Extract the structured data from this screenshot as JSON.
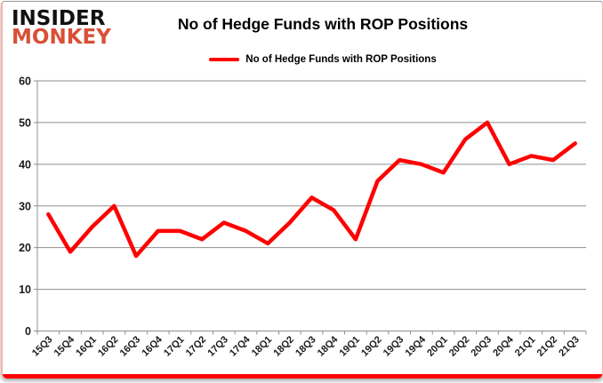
{
  "brand": {
    "line1": "INSIDER",
    "line2": "MONKEY"
  },
  "header": {
    "title": "No of Hedge Funds with ROP Positions"
  },
  "legend": {
    "label": "No of Hedge Funds with ROP Positions"
  },
  "colors": {
    "line": "#ff0000",
    "monkey_red": "#d94f37",
    "grid": "#8f8f8f",
    "axis": "#8f8f8f",
    "tick_label": "#1a1a1a",
    "bottom_bar": "#ff0000"
  },
  "chart_data": {
    "type": "line",
    "title": "No of Hedge Funds with ROP Positions",
    "xlabel": "",
    "ylabel": "",
    "ylim": [
      0,
      60
    ],
    "yticks": [
      0,
      10,
      20,
      30,
      40,
      50,
      60
    ],
    "grid": true,
    "legend_position": "top-center",
    "categories": [
      "15Q3",
      "15Q4",
      "16Q1",
      "16Q2",
      "16Q3",
      "16Q4",
      "17Q1",
      "17Q2",
      "17Q3",
      "17Q4",
      "18Q1",
      "18Q2",
      "18Q3",
      "18Q4",
      "19Q1",
      "19Q2",
      "19Q3",
      "19Q4",
      "20Q1",
      "20Q2",
      "20Q3",
      "20Q4",
      "21Q1",
      "21Q2",
      "21Q3"
    ],
    "series": [
      {
        "name": "No of Hedge Funds with ROP Positions",
        "values": [
          28,
          19,
          25,
          30,
          18,
          24,
          24,
          22,
          26,
          24,
          21,
          26,
          32,
          29,
          22,
          36,
          41,
          40,
          38,
          46,
          50,
          40,
          42,
          41,
          45
        ]
      }
    ]
  }
}
